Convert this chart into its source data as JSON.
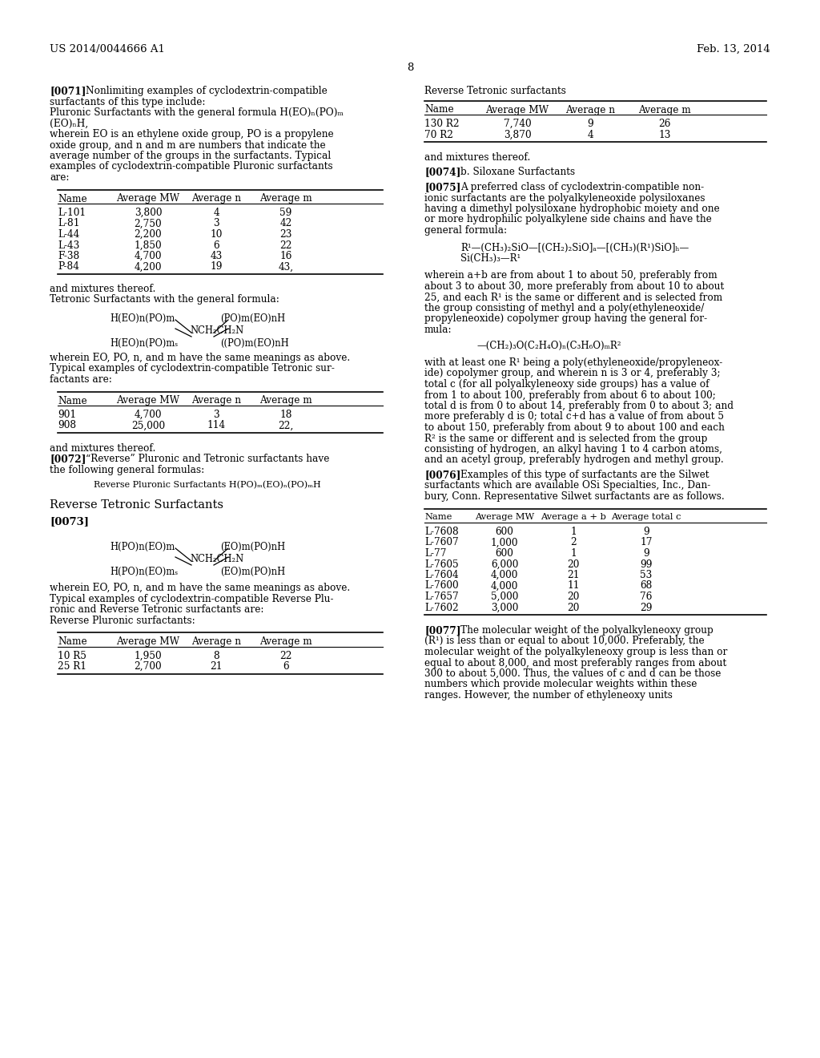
{
  "page_header_left": "US 2014/0044666 A1",
  "page_header_right": "Feb. 13, 2014",
  "page_number": "8",
  "background_color": "#ffffff",
  "left_column": {
    "table1_headers": [
      "Name",
      "Average MW",
      "Average n",
      "Average m"
    ],
    "table1_rows": [
      [
        "L-101",
        "3,800",
        "4",
        "59"
      ],
      [
        "L-81",
        "2,750",
        "3",
        "42"
      ],
      [
        "L-44",
        "2,200",
        "10",
        "23"
      ],
      [
        "L-43",
        "1,850",
        "6",
        "22"
      ],
      [
        "F-38",
        "4,700",
        "43",
        "16"
      ],
      [
        "P-84",
        "4,200",
        "19",
        "43,"
      ]
    ],
    "table2_headers": [
      "Name",
      "Average MW",
      "Average n",
      "Average m"
    ],
    "table2_rows": [
      [
        "901",
        "4,700",
        "3",
        "18"
      ],
      [
        "908",
        "25,000",
        "114",
        "22,"
      ]
    ],
    "table3_headers": [
      "Name",
      "Average MW",
      "Average n",
      "Average m"
    ],
    "table3_rows": [
      [
        "10 R5",
        "1,950",
        "8",
        "22"
      ],
      [
        "25 R1",
        "2,700",
        "21",
        "6"
      ]
    ]
  },
  "right_column": {
    "table4_headers": [
      "Name",
      "Average MW",
      "Average n",
      "Average m"
    ],
    "table4_rows": [
      [
        "130 R2",
        "7,740",
        "9",
        "26"
      ],
      [
        "70 R2",
        "3,870",
        "4",
        "13"
      ]
    ],
    "table5_headers": [
      "Name",
      "Average MW",
      "Average a + b",
      "Average total c"
    ],
    "table5_rows": [
      [
        "L-7608",
        "600",
        "1",
        "9"
      ],
      [
        "L-7607",
        "1,000",
        "2",
        "17"
      ],
      [
        "L-77",
        "600",
        "1",
        "9"
      ],
      [
        "L-7605",
        "6,000",
        "20",
        "99"
      ],
      [
        "L-7604",
        "4,000",
        "21",
        "53"
      ],
      [
        "L-7600",
        "4,000",
        "11",
        "68"
      ],
      [
        "L-7657",
        "5,000",
        "20",
        "76"
      ],
      [
        "L-7602",
        "3,000",
        "20",
        "29"
      ]
    ]
  }
}
